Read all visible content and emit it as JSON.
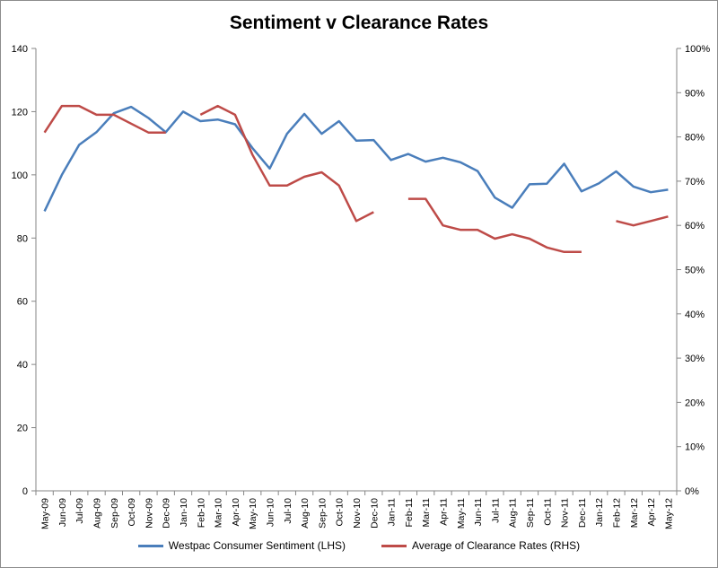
{
  "chart_data": {
    "type": "line",
    "title": "Sentiment v Clearance Rates",
    "categories": [
      "May-09",
      "Jun-09",
      "Jul-09",
      "Aug-09",
      "Sep-09",
      "Oct-09",
      "Nov-09",
      "Dec-09",
      "Jan-10",
      "Feb-10",
      "Mar-10",
      "Apr-10",
      "May-10",
      "Jun-10",
      "Jul-10",
      "Aug-10",
      "Sep-10",
      "Oct-10",
      "Nov-10",
      "Dec-10",
      "Jan-11",
      "Feb-11",
      "Mar-11",
      "Apr-11",
      "May-11",
      "Jun-11",
      "Jul-11",
      "Aug-11",
      "Sep-11",
      "Oct-11",
      "Nov-11",
      "Dec-11",
      "Jan-12",
      "Feb-12",
      "Mar-12",
      "Apr-12",
      "May-12"
    ],
    "left_axis": {
      "min": 0,
      "max": 140,
      "step": 20,
      "ticks": [
        "0",
        "20",
        "40",
        "60",
        "80",
        "100",
        "120",
        "140"
      ]
    },
    "right_axis": {
      "min": 0,
      "max": 1.0,
      "step": 0.1,
      "ticks": [
        "0%",
        "10%",
        "20%",
        "30%",
        "40%",
        "50%",
        "60%",
        "70%",
        "80%",
        "90%",
        "100%"
      ]
    },
    "grid": false,
    "legend_position": "bottom",
    "series": [
      {
        "name": "Westpac Consumer Sentiment (LHS)",
        "axis": "left",
        "color": "#4a7ebb",
        "values": [
          88.5,
          100,
          109.5,
          113.5,
          119.5,
          121.5,
          118,
          113.5,
          120,
          117,
          117.5,
          116,
          108.5,
          102,
          113,
          119.3,
          113,
          117,
          110.8,
          111,
          104.7,
          106.6,
          104.2,
          105.4,
          104,
          101.2,
          92.8,
          89.6,
          97,
          97.2,
          103.5,
          94.8,
          97.3,
          101.1,
          96.3,
          94.5,
          95.3
        ]
      },
      {
        "name": "Average of Clearance Rates (RHS)",
        "axis": "right",
        "color": "#be4b48",
        "values": [
          0.81,
          0.87,
          0.87,
          0.85,
          0.85,
          0.83,
          0.81,
          0.81,
          null,
          0.85,
          0.87,
          0.85,
          0.76,
          0.69,
          0.69,
          0.71,
          0.72,
          0.69,
          0.61,
          0.63,
          null,
          0.66,
          0.66,
          0.6,
          0.59,
          0.59,
          0.57,
          0.58,
          0.57,
          0.55,
          0.54,
          0.54,
          null,
          0.61,
          0.6,
          0.61,
          0.62
        ]
      }
    ]
  }
}
